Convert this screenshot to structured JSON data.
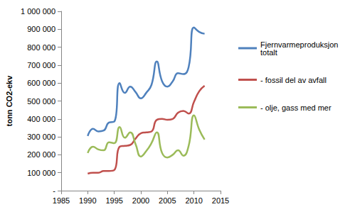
{
  "chart_data": {
    "type": "line",
    "y_label": "tonn CO2-ekv",
    "x": [
      1990,
      1991,
      1992,
      1993,
      1994,
      1995,
      1996,
      1997,
      1998,
      1999,
      2000,
      2001,
      2002,
      2003,
      2004,
      2005,
      2006,
      2007,
      2008,
      2009,
      2010,
      2011,
      2012
    ],
    "series": [
      {
        "name": "Fjernvarmeproduksjon totalt",
        "color": "#4f81bd",
        "values": [
          305000,
          345000,
          330000,
          335000,
          380000,
          385000,
          600000,
          545000,
          580000,
          550000,
          515000,
          545000,
          590000,
          720000,
          610000,
          580000,
          610000,
          655000,
          650000,
          690000,
          910000,
          885000,
          875000
        ]
      },
      {
        "name": "- fossil del av avfall",
        "color": "#c0504d",
        "values": [
          95000,
          100000,
          100000,
          110000,
          110000,
          115000,
          245000,
          250000,
          255000,
          290000,
          320000,
          325000,
          330000,
          395000,
          400000,
          395000,
          400000,
          435000,
          445000,
          430000,
          495000,
          555000,
          585000
        ]
      },
      {
        "name": "- olje, gass med mer",
        "color": "#9bbb59",
        "values": [
          210000,
          245000,
          230000,
          225000,
          270000,
          265000,
          355000,
          295000,
          325000,
          260000,
          190000,
          220000,
          265000,
          325000,
          210000,
          185000,
          200000,
          225000,
          195000,
          250000,
          420000,
          340000,
          285000
        ]
      }
    ],
    "xlim": [
      1985,
      2015
    ],
    "xticks": [
      1985,
      1990,
      1995,
      2000,
      2005,
      2010,
      2015
    ],
    "ylim": [
      0,
      1000000
    ],
    "yticks": [
      {
        "value": 0,
        "label": "-"
      },
      {
        "value": 100000,
        "label": "100 000"
      },
      {
        "value": 200000,
        "label": "200 000"
      },
      {
        "value": 300000,
        "label": "300 000"
      },
      {
        "value": 400000,
        "label": "400 000"
      },
      {
        "value": 500000,
        "label": "500 000"
      },
      {
        "value": 600000,
        "label": "600 000"
      },
      {
        "value": 700000,
        "label": "700 000"
      },
      {
        "value": 800000,
        "label": "800 000"
      },
      {
        "value": 900000,
        "label": "900 000"
      },
      {
        "value": 1000000,
        "label": "1 000 000"
      }
    ],
    "grid": false,
    "legend": "right"
  }
}
